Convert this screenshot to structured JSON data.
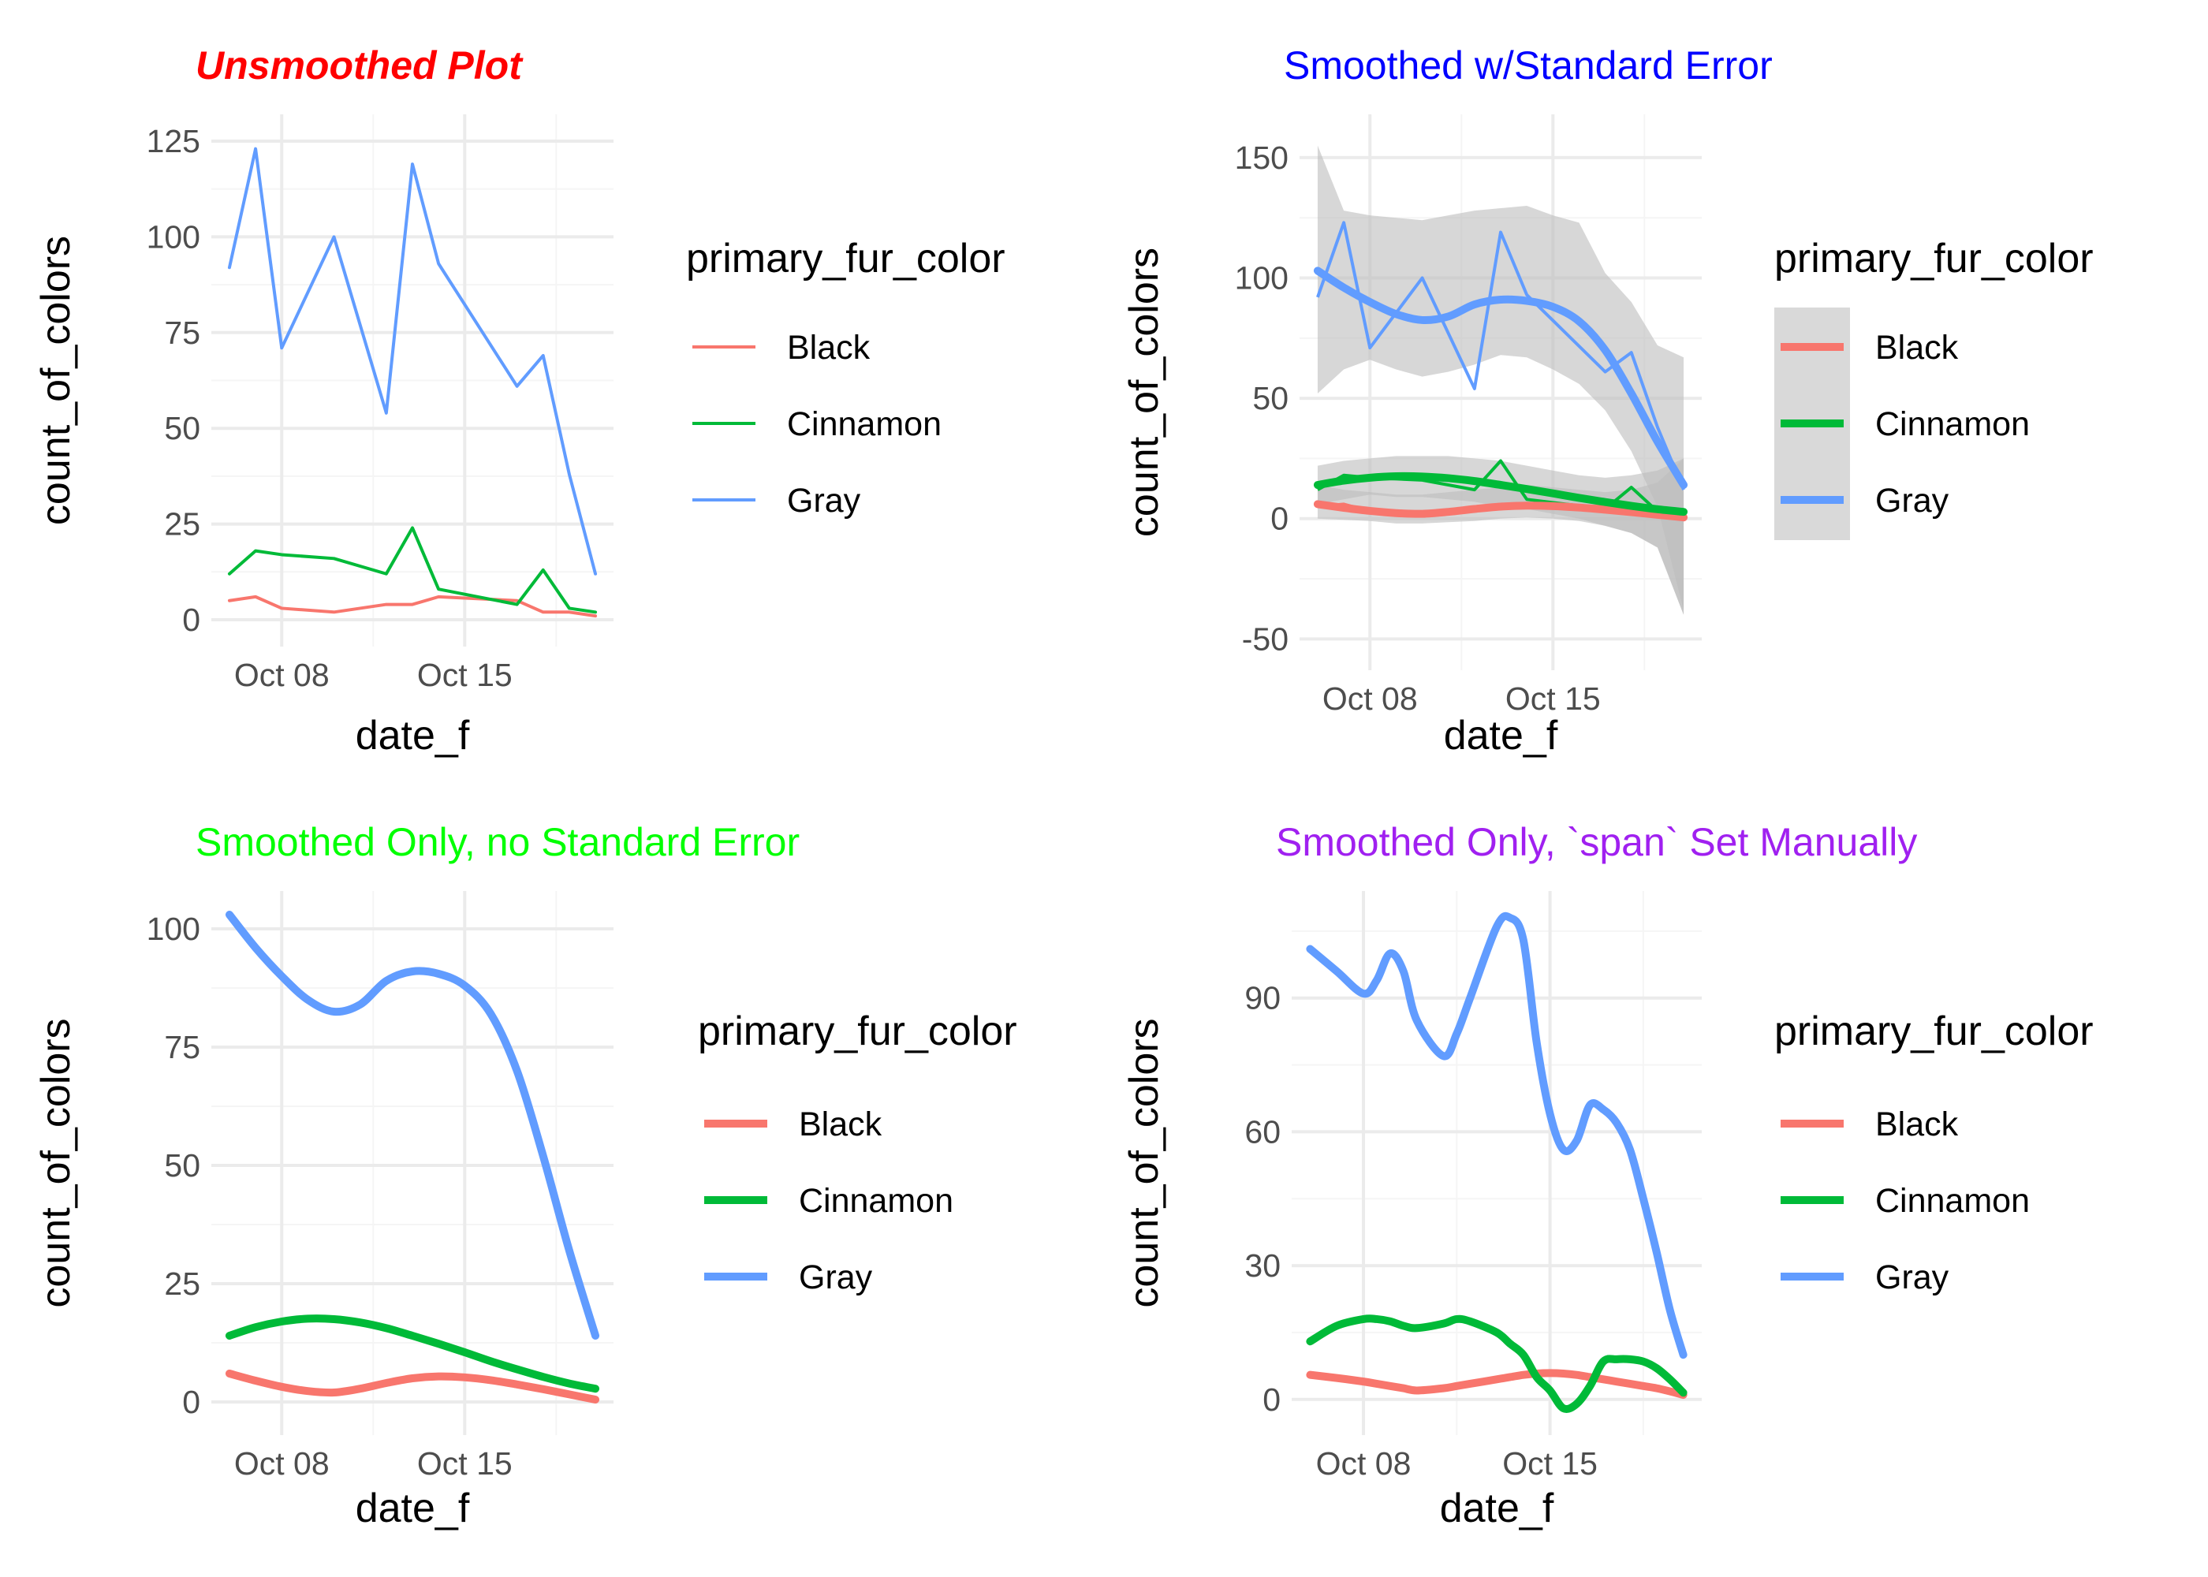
{
  "colors": {
    "Black": "#F8766D",
    "Cinnamon": "#00BA38",
    "Gray": "#619CFF",
    "ribbon": "#bdbdbd",
    "grid_major": "#ebebeb",
    "grid_minor": "#f5f5f5"
  },
  "legend": {
    "title": "primary_fur_color",
    "labels": [
      "Black",
      "Cinnamon",
      "Gray"
    ]
  },
  "chart_data": [
    {
      "type": "line",
      "title": "Unsmoothed Plot",
      "title_color": "#FF0000",
      "title_style": "bold-italic",
      "xlabel": "date_f",
      "ylabel": "count_of_colors",
      "x_ticks": [
        {
          "date": "2018-10-08",
          "label": "Oct 08"
        },
        {
          "date": "2018-10-15",
          "label": "Oct 15"
        }
      ],
      "ylim": [
        -7,
        132
      ],
      "y_ticks": [
        0,
        25,
        50,
        75,
        100,
        125
      ],
      "grid": true,
      "legend_position": "right",
      "x": [
        "2018-10-06",
        "2018-10-07",
        "2018-10-08",
        "2018-10-10",
        "2018-10-12",
        "2018-10-13",
        "2018-10-14",
        "2018-10-17",
        "2018-10-18",
        "2018-10-19",
        "2018-10-20"
      ],
      "series": [
        {
          "name": "Black",
          "values": [
            5,
            6,
            3,
            2,
            4,
            4,
            6,
            5,
            2,
            2,
            1
          ]
        },
        {
          "name": "Cinnamon",
          "values": [
            12,
            18,
            17,
            16,
            12,
            24,
            8,
            4,
            13,
            3,
            2
          ]
        },
        {
          "name": "Gray",
          "values": [
            92,
            123,
            71,
            100,
            54,
            119,
            93,
            61,
            69,
            38,
            12
          ]
        }
      ]
    },
    {
      "type": "line",
      "title": "Smoothed w/Standard Error",
      "title_color": "#0000FF",
      "xlabel": "date_f",
      "ylabel": "count_of_colors",
      "x_ticks": [
        {
          "date": "2018-10-08",
          "label": "Oct 08"
        },
        {
          "date": "2018-10-15",
          "label": "Oct 15"
        }
      ],
      "ylim": [
        -63,
        168
      ],
      "y_ticks": [
        -50,
        0,
        50,
        100,
        150
      ],
      "grid": true,
      "legend_position": "right",
      "x": [
        "2018-10-06",
        "2018-10-07",
        "2018-10-08",
        "2018-10-10",
        "2018-10-12",
        "2018-10-13",
        "2018-10-14",
        "2018-10-17",
        "2018-10-18",
        "2018-10-19",
        "2018-10-20"
      ],
      "series": [
        {
          "name": "Black",
          "values": [
            5,
            6,
            3,
            2,
            4,
            4,
            6,
            5,
            2,
            2,
            1
          ]
        },
        {
          "name": "Cinnamon",
          "values": [
            12,
            18,
            17,
            16,
            12,
            24,
            8,
            4,
            13,
            3,
            2
          ]
        },
        {
          "name": "Gray",
          "values": [
            92,
            123,
            71,
            100,
            54,
            119,
            93,
            61,
            69,
            38,
            12
          ]
        }
      ],
      "smooth": {
        "x": [
          "2018-10-06",
          "2018-10-07",
          "2018-10-08",
          "2018-10-09",
          "2018-10-10",
          "2018-10-11",
          "2018-10-12",
          "2018-10-13",
          "2018-10-14",
          "2018-10-15",
          "2018-10-16",
          "2018-10-17",
          "2018-10-18",
          "2018-10-19",
          "2018-10-20"
        ],
        "series": [
          {
            "name": "Black",
            "fit": [
              6,
              4.5,
              3.2,
              2.3,
              2,
              2.8,
              4,
              5,
              5.4,
              5.2,
              4.6,
              3.7,
              2.7,
              1.6,
              0.5
            ],
            "lower": [
              0,
              -0.5,
              -1,
              -2,
              -2,
              -1.5,
              -1,
              0,
              0.5,
              0,
              -1,
              -3,
              -6,
              -12,
              -40
            ],
            "upper": [
              14,
              12,
              11,
              10,
              10,
              11,
              12,
              13,
              14,
              13,
              12,
              11,
              12,
              15,
              25
            ]
          },
          {
            "name": "Cinnamon",
            "fit": [
              14,
              15.8,
              17,
              17.6,
              17.5,
              16.8,
              15.6,
              14,
              12.3,
              10.5,
              8.6,
              6.9,
              5.3,
              3.9,
              2.8
            ],
            "lower": [
              6,
              8,
              10,
              9,
              9,
              8,
              7,
              5,
              4,
              2,
              0,
              -3,
              -6,
              -12,
              -40
            ],
            "upper": [
              22,
              24,
              25,
              26,
              26,
              26,
              25,
              24,
              22,
              20,
              18,
              17,
              18,
              20,
              25
            ]
          },
          {
            "name": "Gray",
            "fit": [
              103,
              96,
              90,
              85,
              82.5,
              84,
              89,
              91,
              90.5,
              88,
              82,
              70,
              52,
              32,
              14
            ],
            "lower": [
              52,
              62,
              66,
              62,
              59,
              61,
              64,
              68,
              67,
              62,
              56,
              45,
              28,
              5,
              -38
            ],
            "upper": [
              155,
              128,
              126,
              125,
              124,
              126,
              128,
              129,
              130,
              126,
              123,
              102,
              90,
              72,
              67
            ]
          }
        ]
      }
    },
    {
      "type": "line",
      "title": "Smoothed Only, no Standard Error",
      "title_color": "#00FF00",
      "xlabel": "date_f",
      "ylabel": "count_of_colors",
      "x_ticks": [
        {
          "date": "2018-10-08",
          "label": "Oct 08"
        },
        {
          "date": "2018-10-15",
          "label": "Oct 15"
        }
      ],
      "ylim": [
        -7,
        108
      ],
      "y_ticks": [
        0,
        25,
        50,
        75,
        100
      ],
      "grid": true,
      "legend_position": "right",
      "x": [
        "2018-10-06",
        "2018-10-07",
        "2018-10-08",
        "2018-10-09",
        "2018-10-10",
        "2018-10-11",
        "2018-10-12",
        "2018-10-13",
        "2018-10-14",
        "2018-10-15",
        "2018-10-16",
        "2018-10-17",
        "2018-10-18",
        "2018-10-19",
        "2018-10-20"
      ],
      "series": [
        {
          "name": "Black",
          "values": [
            6,
            4.5,
            3.2,
            2.3,
            2,
            2.8,
            4,
            5,
            5.4,
            5.2,
            4.6,
            3.7,
            2.7,
            1.6,
            0.5
          ]
        },
        {
          "name": "Cinnamon",
          "values": [
            14,
            15.8,
            17,
            17.6,
            17.5,
            16.8,
            15.6,
            14,
            12.3,
            10.5,
            8.6,
            6.9,
            5.3,
            3.9,
            2.8
          ]
        },
        {
          "name": "Gray",
          "values": [
            103,
            96,
            90,
            85,
            82.5,
            84,
            89,
            91,
            90.5,
            88,
            82,
            70,
            52,
            32,
            14
          ]
        }
      ]
    },
    {
      "type": "line",
      "title": "Smoothed Only, `span` Set Manually",
      "title_color": "#A020F0",
      "xlabel": "date_f",
      "ylabel": "count_of_colors",
      "x_ticks": [
        {
          "date": "2018-10-08",
          "label": "Oct 08"
        },
        {
          "date": "2018-10-15",
          "label": "Oct 15"
        }
      ],
      "ylim": [
        -8,
        114
      ],
      "y_ticks": [
        0,
        30,
        60,
        90
      ],
      "grid": true,
      "legend_position": "right",
      "x": [
        "2018-10-06",
        "2018-10-07",
        "2018-10-08",
        "2018-10-08.5",
        "2018-10-09",
        "2018-10-09.5",
        "2018-10-10",
        "2018-10-11",
        "2018-10-11.5",
        "2018-10-12",
        "2018-10-13",
        "2018-10-13.5",
        "2018-10-14",
        "2018-10-14.5",
        "2018-10-15",
        "2018-10-15.5",
        "2018-10-16",
        "2018-10-16.5",
        "2018-10-17",
        "2018-10-17.5",
        "2018-10-18",
        "2018-10-18.5",
        "2018-10-19",
        "2018-10-19.5",
        "2018-10-20"
      ],
      "series": [
        {
          "name": "Black",
          "values": [
            5.5,
            4.8,
            4,
            3.5,
            3,
            2.5,
            2,
            2.5,
            3,
            3.5,
            4.5,
            5,
            5.5,
            5.8,
            5.9,
            5.8,
            5.5,
            5,
            4.5,
            4,
            3.5,
            3,
            2.5,
            1.8,
            1
          ]
        },
        {
          "name": "Cinnamon",
          "values": [
            13,
            16.5,
            18,
            18,
            17.5,
            16.5,
            16,
            17,
            18,
            17.5,
            15,
            12.5,
            10,
            5,
            2,
            -2,
            -1,
            3,
            8.5,
            9,
            9,
            8.5,
            7,
            4.5,
            1.5
          ]
        },
        {
          "name": "Gray",
          "values": [
            101,
            96,
            91,
            94,
            100,
            96,
            85,
            77,
            82,
            90,
            106,
            108,
            103,
            80,
            64,
            56,
            58,
            66,
            65,
            62,
            56,
            45,
            33,
            20,
            10
          ]
        }
      ]
    }
  ]
}
